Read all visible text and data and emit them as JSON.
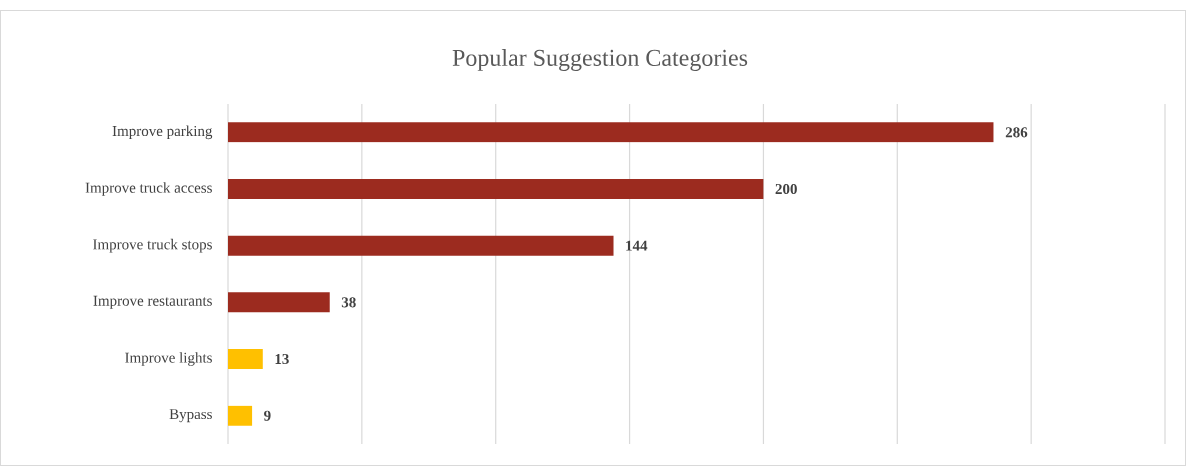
{
  "chart_data": {
    "type": "bar",
    "orientation": "horizontal",
    "title": "Popular Suggestion Categories",
    "categories": [
      "Improve parking",
      "Improve truck access",
      "Improve truck stops",
      "Improve restaurants",
      "Improve lights",
      "Bypass"
    ],
    "values": [
      286,
      200,
      144,
      38,
      13,
      9
    ],
    "colors": [
      "#9c2b1f",
      "#9c2b1f",
      "#9c2b1f",
      "#9c2b1f",
      "#ffc000",
      "#ffc000"
    ],
    "xlim": [
      0,
      350
    ],
    "xticks": [
      {
        "value": 0,
        "label": null
      },
      {
        "value": 50,
        "label": null
      },
      {
        "value": 100,
        "label": null
      },
      {
        "value": 150,
        "label": null
      },
      {
        "value": 200,
        "label": null
      },
      {
        "value": 250,
        "label": null
      },
      {
        "value": 300,
        "label": null
      },
      {
        "value": 350,
        "label": null
      }
    ],
    "grid": "x",
    "tick_labels": "y",
    "data_labels": true
  }
}
